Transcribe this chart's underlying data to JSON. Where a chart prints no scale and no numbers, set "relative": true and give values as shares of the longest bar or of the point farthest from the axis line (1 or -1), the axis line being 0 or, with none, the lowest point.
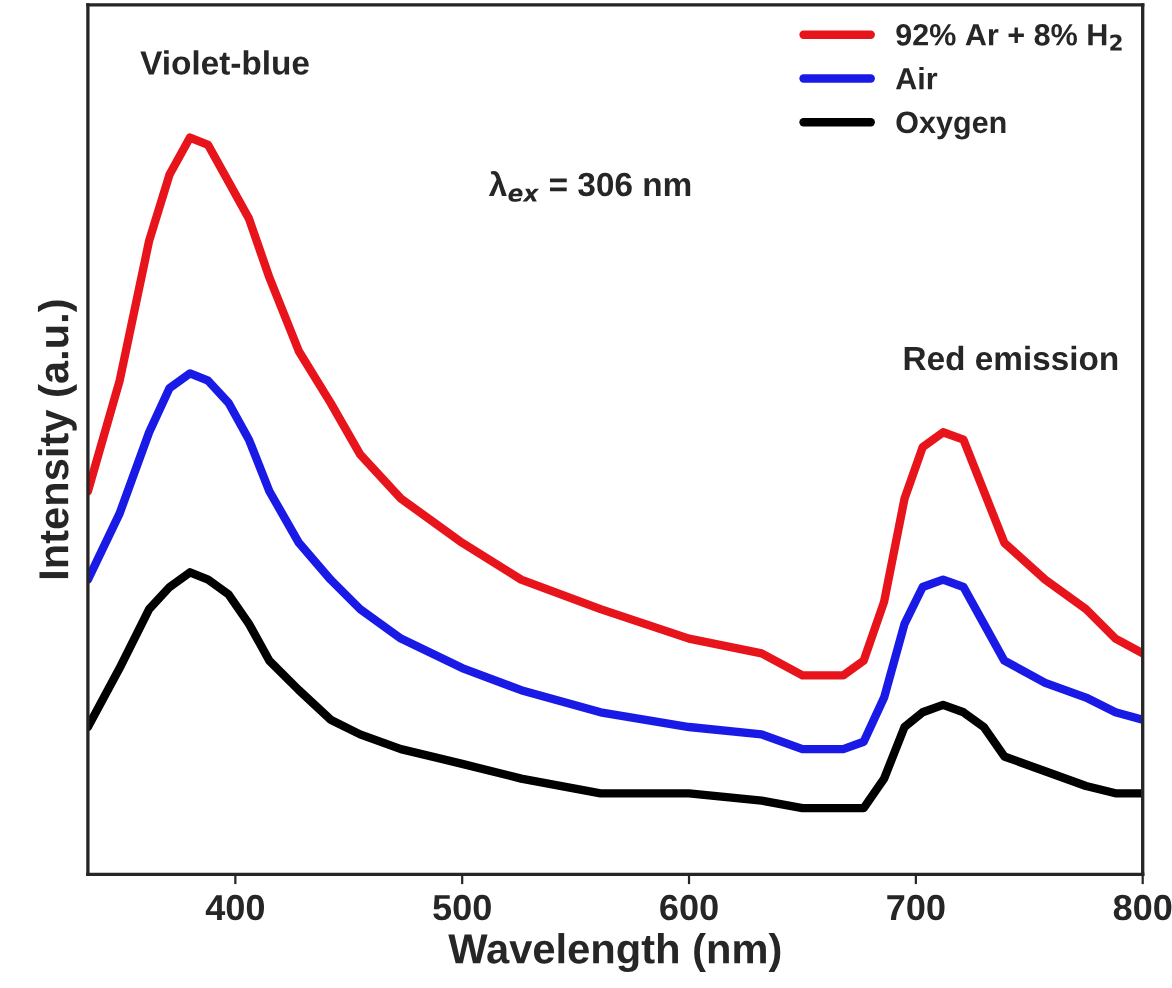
{
  "chart_data": {
    "type": "line",
    "relative": true,
    "xlabel": "Wavelength (nm)",
    "ylabel": "Intensity (a.u.)",
    "xlim": [
      335,
      800
    ],
    "xticks": [
      400,
      500,
      600,
      700,
      800
    ],
    "x": [
      335,
      349,
      362,
      371,
      380,
      388,
      397,
      406,
      415,
      428,
      442,
      455,
      473,
      500,
      526,
      561,
      600,
      632,
      650,
      668,
      677,
      686,
      695,
      703,
      712,
      721,
      730,
      739,
      757,
      775,
      788,
      800
    ],
    "annotations": [
      "Violet-blue",
      "λ$_{ex}$ = 306 nm",
      "Red emission"
    ],
    "legend": "top right",
    "grid": false,
    "line_style": "solid",
    "marker": "none",
    "series": [
      {
        "name": "92% Ar + 8% H$_{2}$",
        "color": "#e8141b",
        "values": [
          0.52,
          0.67,
          0.86,
          0.95,
          1.0,
          0.99,
          0.94,
          0.89,
          0.81,
          0.71,
          0.64,
          0.57,
          0.51,
          0.45,
          0.4,
          0.36,
          0.32,
          0.3,
          0.27,
          0.27,
          0.29,
          0.37,
          0.51,
          0.58,
          0.6,
          0.59,
          0.52,
          0.45,
          0.4,
          0.36,
          0.32,
          0.3
        ]
      },
      {
        "name": "Air",
        "color": "#1a1ae6",
        "values": [
          0.4,
          0.49,
          0.6,
          0.66,
          0.68,
          0.67,
          0.64,
          0.59,
          0.52,
          0.45,
          0.4,
          0.36,
          0.32,
          0.28,
          0.25,
          0.22,
          0.2,
          0.19,
          0.17,
          0.17,
          0.18,
          0.24,
          0.34,
          0.39,
          0.4,
          0.39,
          0.34,
          0.29,
          0.26,
          0.24,
          0.22,
          0.21
        ]
      },
      {
        "name": "Oxygen",
        "color": "#000000",
        "values": [
          0.2,
          0.28,
          0.36,
          0.39,
          0.41,
          0.4,
          0.38,
          0.34,
          0.29,
          0.25,
          0.21,
          0.19,
          0.17,
          0.15,
          0.13,
          0.11,
          0.11,
          0.1,
          0.09,
          0.09,
          0.09,
          0.13,
          0.2,
          0.22,
          0.23,
          0.22,
          0.2,
          0.16,
          0.14,
          0.12,
          0.11,
          0.11
        ]
      }
    ]
  }
}
